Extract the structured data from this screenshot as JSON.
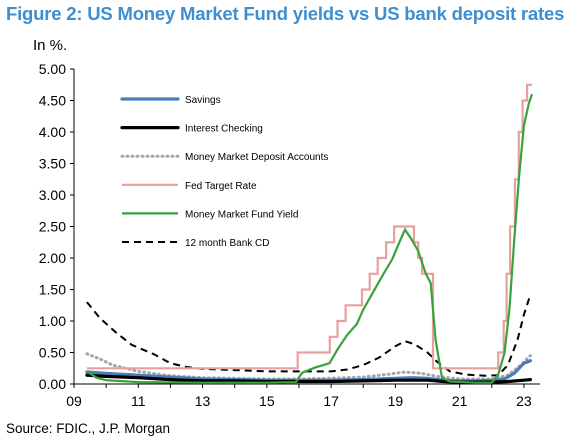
{
  "figure": {
    "title": "Figure 2: US Money Market Fund yields vs US bank deposit rates",
    "unit_label": "In %.",
    "source": "Source: FDIC., J.P. Morgan"
  },
  "chart_data": {
    "type": "line",
    "title": "Figure 2: US Money Market Fund yields vs US bank deposit rates",
    "xlabel": "",
    "ylabel": "In %.",
    "xlim": [
      2009,
      2023.5
    ],
    "ylim": [
      0,
      5
    ],
    "x_ticks": [
      2009,
      2011,
      2013,
      2015,
      2017,
      2019,
      2021,
      2023
    ],
    "x_tick_labels": [
      "09",
      "11",
      "13",
      "15",
      "17",
      "19",
      "21",
      "23"
    ],
    "y_ticks": [
      0,
      0.5,
      1,
      1.5,
      2,
      2.5,
      3,
      3.5,
      4,
      4.5,
      5
    ],
    "y_tick_labels": [
      "0.00",
      "0.50",
      "1.00",
      "1.50",
      "2.00",
      "2.50",
      "3.00",
      "3.50",
      "4.00",
      "4.50",
      "5.00"
    ],
    "grid": false,
    "legend_position": "upper-left",
    "series": [
      {
        "name": "Savings",
        "color": "#4a7ebb",
        "style": "solid-thick",
        "points": [
          [
            2009.4,
            0.19
          ],
          [
            2010,
            0.17
          ],
          [
            2011,
            0.14
          ],
          [
            2012,
            0.11
          ],
          [
            2013,
            0.08
          ],
          [
            2014,
            0.07
          ],
          [
            2015,
            0.06
          ],
          [
            2016,
            0.06
          ],
          [
            2017,
            0.06
          ],
          [
            2018,
            0.07
          ],
          [
            2019,
            0.09
          ],
          [
            2019.5,
            0.1
          ],
          [
            2020,
            0.09
          ],
          [
            2020.5,
            0.06
          ],
          [
            2021,
            0.05
          ],
          [
            2021.5,
            0.05
          ],
          [
            2022,
            0.06
          ],
          [
            2022.4,
            0.08
          ],
          [
            2022.7,
            0.17
          ],
          [
            2023,
            0.33
          ],
          [
            2023.2,
            0.37
          ]
        ]
      },
      {
        "name": "Interest Checking",
        "color": "#000000",
        "style": "solid-thick",
        "points": [
          [
            2009.4,
            0.14
          ],
          [
            2010,
            0.12
          ],
          [
            2011,
            0.1
          ],
          [
            2012,
            0.07
          ],
          [
            2013,
            0.05
          ],
          [
            2014,
            0.05
          ],
          [
            2015,
            0.04
          ],
          [
            2016,
            0.04
          ],
          [
            2017,
            0.04
          ],
          [
            2018,
            0.05
          ],
          [
            2019,
            0.06
          ],
          [
            2020,
            0.06
          ],
          [
            2020.5,
            0.04
          ],
          [
            2021,
            0.03
          ],
          [
            2022,
            0.03
          ],
          [
            2022.5,
            0.04
          ],
          [
            2023,
            0.06
          ],
          [
            2023.2,
            0.07
          ]
        ]
      },
      {
        "name": "Money Market Deposit Accounts",
        "color": "#a6a6a6",
        "style": "dotted",
        "points": [
          [
            2009.4,
            0.48
          ],
          [
            2009.8,
            0.4
          ],
          [
            2010.2,
            0.3
          ],
          [
            2011,
            0.2
          ],
          [
            2012,
            0.13
          ],
          [
            2013,
            0.1
          ],
          [
            2014,
            0.09
          ],
          [
            2015,
            0.08
          ],
          [
            2016,
            0.08
          ],
          [
            2017,
            0.09
          ],
          [
            2018,
            0.11
          ],
          [
            2018.7,
            0.15
          ],
          [
            2019.3,
            0.19
          ],
          [
            2019.8,
            0.17
          ],
          [
            2020.3,
            0.12
          ],
          [
            2021,
            0.08
          ],
          [
            2022,
            0.08
          ],
          [
            2022.5,
            0.14
          ],
          [
            2022.9,
            0.3
          ],
          [
            2023.2,
            0.45
          ]
        ]
      },
      {
        "name": "Fed Target Rate",
        "color": "#e6a0a0",
        "style": "solid",
        "points": [
          [
            2009.4,
            0.25
          ],
          [
            2015.96,
            0.25
          ],
          [
            2015.96,
            0.5
          ],
          [
            2016.96,
            0.5
          ],
          [
            2016.96,
            0.75
          ],
          [
            2017.2,
            0.75
          ],
          [
            2017.2,
            1.0
          ],
          [
            2017.45,
            1.0
          ],
          [
            2017.45,
            1.25
          ],
          [
            2017.96,
            1.25
          ],
          [
            2017.96,
            1.5
          ],
          [
            2018.2,
            1.5
          ],
          [
            2018.2,
            1.75
          ],
          [
            2018.45,
            1.75
          ],
          [
            2018.45,
            2.0
          ],
          [
            2018.71,
            2.0
          ],
          [
            2018.71,
            2.25
          ],
          [
            2018.96,
            2.25
          ],
          [
            2018.96,
            2.5
          ],
          [
            2019.58,
            2.5
          ],
          [
            2019.58,
            2.25
          ],
          [
            2019.71,
            2.25
          ],
          [
            2019.71,
            2.0
          ],
          [
            2019.83,
            2.0
          ],
          [
            2019.83,
            1.75
          ],
          [
            2020.17,
            1.75
          ],
          [
            2020.17,
            0.25
          ],
          [
            2022.2,
            0.25
          ],
          [
            2022.2,
            0.5
          ],
          [
            2022.37,
            0.5
          ],
          [
            2022.37,
            1.0
          ],
          [
            2022.46,
            1.0
          ],
          [
            2022.46,
            1.75
          ],
          [
            2022.57,
            1.75
          ],
          [
            2022.57,
            2.5
          ],
          [
            2022.72,
            2.5
          ],
          [
            2022.72,
            3.25
          ],
          [
            2022.84,
            3.25
          ],
          [
            2022.84,
            4.0
          ],
          [
            2022.96,
            4.0
          ],
          [
            2022.96,
            4.5
          ],
          [
            2023.1,
            4.5
          ],
          [
            2023.1,
            4.75
          ],
          [
            2023.25,
            4.75
          ]
        ]
      },
      {
        "name": "Money Market Fund Yield",
        "color": "#3aa23a",
        "style": "solid",
        "points": [
          [
            2009.4,
            0.2
          ],
          [
            2009.7,
            0.1
          ],
          [
            2010,
            0.06
          ],
          [
            2011,
            0.03
          ],
          [
            2013,
            0.02
          ],
          [
            2015,
            0.02
          ],
          [
            2015.9,
            0.03
          ],
          [
            2016.1,
            0.18
          ],
          [
            2016.5,
            0.26
          ],
          [
            2016.95,
            0.33
          ],
          [
            2017.2,
            0.55
          ],
          [
            2017.5,
            0.78
          ],
          [
            2017.8,
            0.95
          ],
          [
            2018.0,
            1.18
          ],
          [
            2018.3,
            1.45
          ],
          [
            2018.6,
            1.72
          ],
          [
            2018.9,
            1.98
          ],
          [
            2019.1,
            2.22
          ],
          [
            2019.3,
            2.45
          ],
          [
            2019.5,
            2.3
          ],
          [
            2019.7,
            2.12
          ],
          [
            2019.95,
            1.75
          ],
          [
            2020.1,
            1.6
          ],
          [
            2020.25,
            0.7
          ],
          [
            2020.45,
            0.1
          ],
          [
            2020.7,
            0.04
          ],
          [
            2021.5,
            0.02
          ],
          [
            2022.0,
            0.02
          ],
          [
            2022.2,
            0.15
          ],
          [
            2022.4,
            0.5
          ],
          [
            2022.55,
            1.2
          ],
          [
            2022.7,
            2.3
          ],
          [
            2022.85,
            3.3
          ],
          [
            2023.0,
            4.1
          ],
          [
            2023.15,
            4.45
          ],
          [
            2023.25,
            4.6
          ]
        ]
      },
      {
        "name": "12 month Bank CD",
        "color": "#000000",
        "style": "dashed",
        "points": [
          [
            2009.4,
            1.3
          ],
          [
            2009.8,
            1.05
          ],
          [
            2010.3,
            0.82
          ],
          [
            2010.8,
            0.62
          ],
          [
            2011.5,
            0.47
          ],
          [
            2012,
            0.33
          ],
          [
            2012.5,
            0.27
          ],
          [
            2013,
            0.24
          ],
          [
            2014,
            0.22
          ],
          [
            2015,
            0.2
          ],
          [
            2016,
            0.2
          ],
          [
            2017,
            0.2
          ],
          [
            2017.5,
            0.23
          ],
          [
            2018,
            0.3
          ],
          [
            2018.5,
            0.42
          ],
          [
            2019,
            0.6
          ],
          [
            2019.3,
            0.68
          ],
          [
            2019.6,
            0.63
          ],
          [
            2020,
            0.5
          ],
          [
            2020.3,
            0.35
          ],
          [
            2020.7,
            0.2
          ],
          [
            2021.2,
            0.15
          ],
          [
            2021.8,
            0.13
          ],
          [
            2022.2,
            0.14
          ],
          [
            2022.5,
            0.3
          ],
          [
            2022.8,
            0.7
          ],
          [
            2023.0,
            1.1
          ],
          [
            2023.2,
            1.42
          ]
        ]
      }
    ]
  }
}
